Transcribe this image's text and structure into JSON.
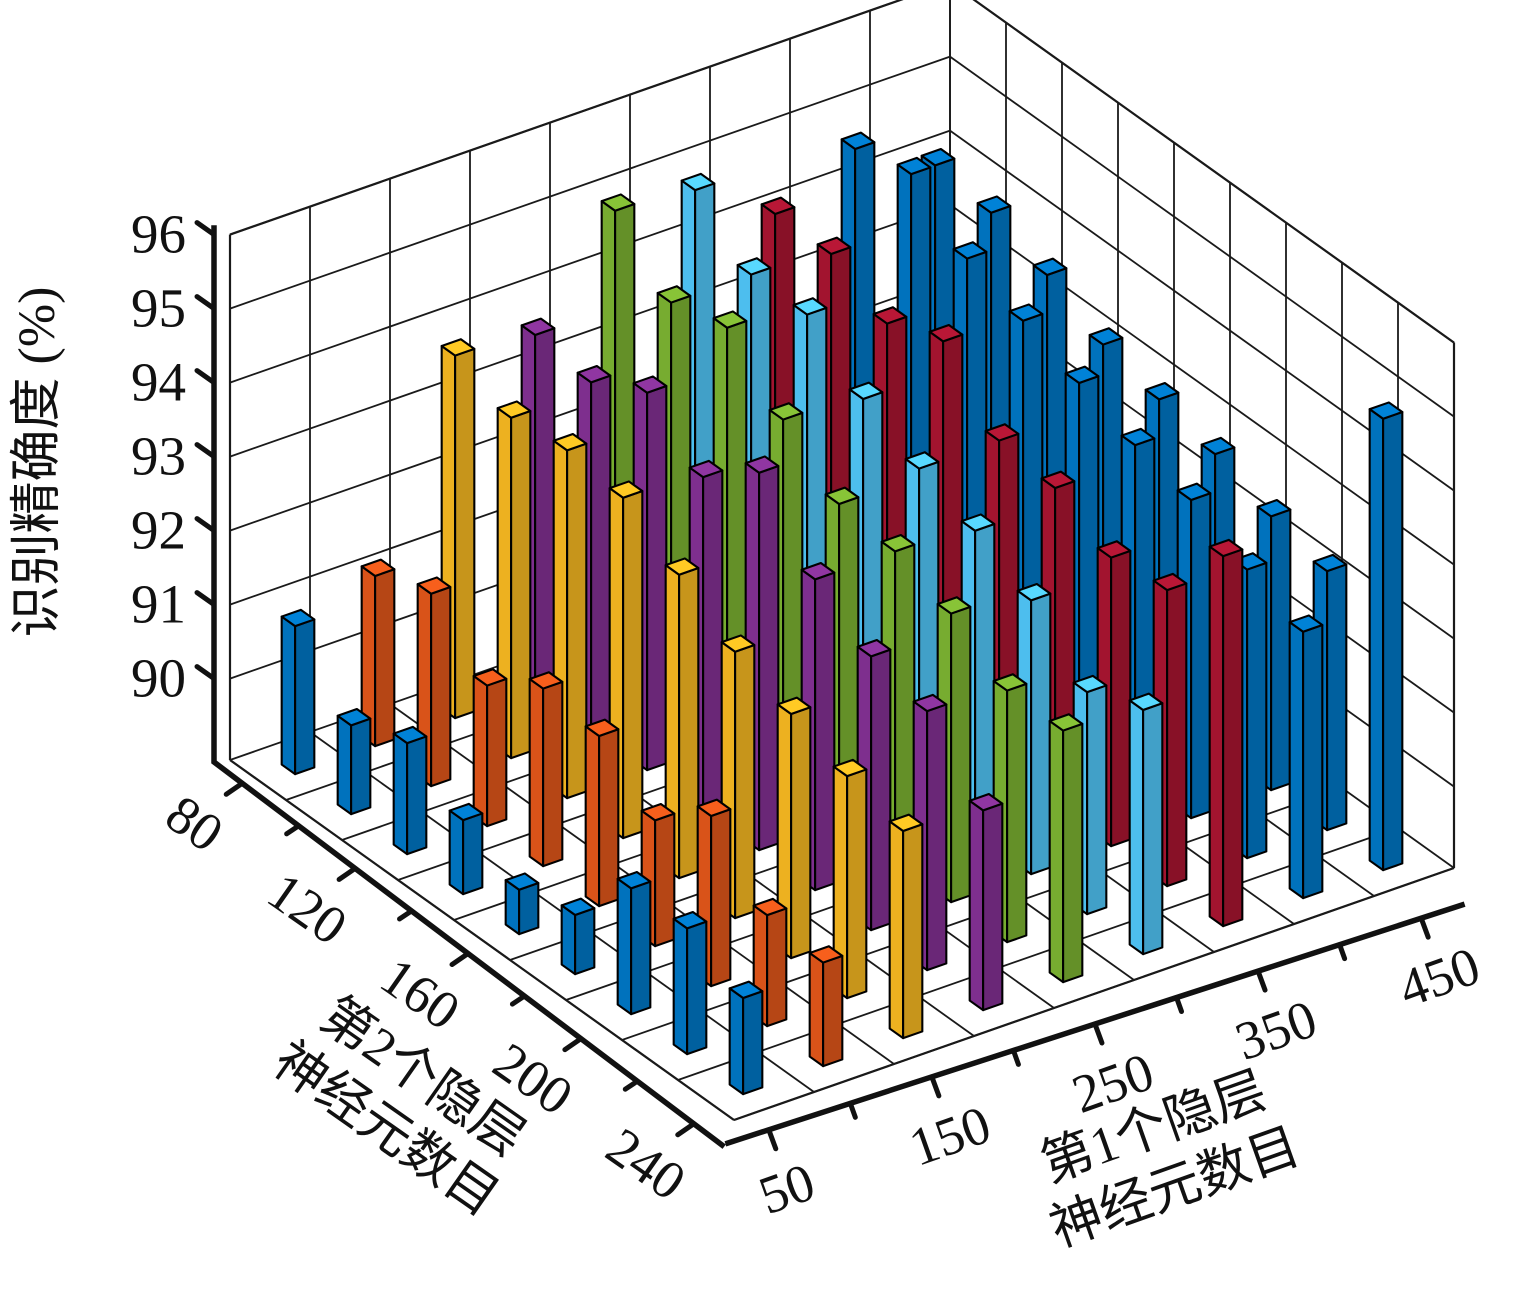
{
  "figure": {
    "background": "#ffffff",
    "frame_color": "#111111",
    "grid_color": "#1a1a1a"
  },
  "chart_data": {
    "type": "bar",
    "subtype": "bar3d",
    "title": "",
    "zlabel": "识别精确度 (%)",
    "xlabel": "第1个隐层神经元数目",
    "xlabel_lines": [
      "第1个隐层",
      "神经元数目"
    ],
    "ylabel": "第2个隐层神经元数目",
    "ylabel_lines": [
      "第2个隐层",
      "神经元数目"
    ],
    "x_axis": {
      "values": [
        50,
        100,
        150,
        200,
        250,
        300,
        350,
        400,
        450
      ],
      "tick_labels": [
        "50",
        "150",
        "250",
        "350",
        "450"
      ],
      "labeled_values": [
        50,
        150,
        250,
        350,
        450
      ],
      "lim": [
        25,
        475
      ]
    },
    "y_axis": {
      "values": [
        80,
        100,
        120,
        140,
        160,
        180,
        200,
        220,
        240
      ],
      "tick_labels": [
        "80",
        "120",
        "160",
        "200",
        "240"
      ],
      "labeled_values": [
        80,
        120,
        160,
        200,
        240
      ],
      "lim": [
        70,
        250
      ]
    },
    "z_axis": {
      "ticks": [
        90,
        91,
        92,
        93,
        94,
        95,
        96
      ],
      "tick_labels": [
        "90",
        "91",
        "92",
        "93",
        "94",
        "95",
        "96"
      ],
      "lim": [
        88.9,
        96
      ]
    },
    "grid": true,
    "legend": "none",
    "palette": [
      "#0072BD",
      "#D95319",
      "#EDB120",
      "#7E2F8E",
      "#77AC30",
      "#4DBEEE",
      "#A2142F"
    ],
    "series": [
      {
        "name": "50",
        "color": "#0072BD",
        "values": [
          90.9,
          90.1,
          90.4,
          89.9,
          89.5,
          89.7,
          90.6,
          90.6,
          90.2
        ]
      },
      {
        "name": "100",
        "color": "#D95319",
        "values": [
          91.2,
          91.5,
          90.8,
          91.3,
          91.2,
          90.6,
          91.2,
          90.4,
          90.3
        ]
      },
      {
        "name": "150",
        "color": "#EDB120",
        "values": [
          93.8,
          93.5,
          93.6,
          93.5,
          93.0,
          92.5,
          92.2,
          91.9,
          91.7
        ]
      },
      {
        "name": "200",
        "color": "#7E2F8E",
        "values": [
          93.7,
          93.6,
          94.0,
          93.4,
          94.0,
          93.1,
          92.6,
          92.4,
          91.6
        ]
      },
      {
        "name": "250",
        "color": "#77AC30",
        "values": [
          95.0,
          94.3,
          94.5,
          93.8,
          93.2,
          93.1,
          92.8,
          92.3,
          92.3
        ]
      },
      {
        "name": "300",
        "color": "#4DBEEE",
        "values": [
          94.9,
          94.3,
          94.3,
          93.7,
          93.3,
          93.0,
          92.6,
          91.9,
          92.2
        ]
      },
      {
        "name": "350",
        "color": "#A2142F",
        "values": [
          94.2,
          94.2,
          93.8,
          94.1,
          93.3,
          93.2,
          92.8,
          92.9,
          93.9
        ]
      },
      {
        "name": "400",
        "color": "#0072BD",
        "values": [
          94.7,
          94.9,
          94.3,
          94.0,
          93.7,
          93.4,
          93.2,
          92.8,
          92.5
        ]
      },
      {
        "name": "450",
        "color": "#0072BD",
        "values": [
          94.1,
          94.0,
          93.7,
          93.3,
          93.1,
          92.9,
          92.6,
          92.4,
          95.0
        ]
      }
    ]
  }
}
